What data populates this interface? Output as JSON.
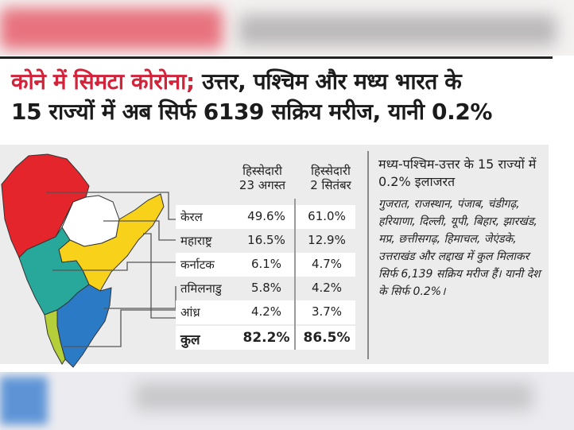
{
  "headline": {
    "part1": "कोने में सिमटा कोरोना;",
    "part2": " उत्तर, पश्चिम और मध्य भारत के",
    "line2": "15 राज्यों में अब सिर्फ 6139 सक्रिय मरीज, यानी 0.2%"
  },
  "table": {
    "col1_line1": "हिस्सेदारी",
    "col1_line2": "23 अगस्त",
    "col2_line1": "हिस्सेदारी",
    "col2_line2": "2 सितंबर",
    "rows": [
      {
        "state": "केरल",
        "aug23": "49.6%",
        "sep2": "61.0%"
      },
      {
        "state": "महाराष्ट्र",
        "aug23": "16.5%",
        "sep2": "12.9%"
      },
      {
        "state": "कर्नाटक",
        "aug23": "6.1%",
        "sep2": "4.7%"
      },
      {
        "state": "तमिलनाडु",
        "aug23": "5.8%",
        "sep2": "4.2%"
      },
      {
        "state": "आंध्र",
        "aug23": "4.2%",
        "sep2": "3.7%"
      }
    ],
    "total": {
      "state": "कुल",
      "aug23": "82.2%",
      "sep2": "86.5%"
    }
  },
  "sidebox": {
    "heading": "मध्य-पश्चिम-उत्तर के 15 राज्यों में 0.2% इलाजरत",
    "body": "गुजरात, राजस्थान, पंजाब, चंडीगढ़, हरियाणा, दिल्ली, यूपी, बिहार, झारखंड, मप्र, छत्तीसगढ़, हिमाचल, जेएंडके, उत्तराखंड और लद्दाख में कुल मिलाकर सिर्फ 6,139 सक्रिय मरीज हैं। यानी देश के सिर्फ 0.2%।"
  },
  "colors": {
    "maharashtra": "#e4252c",
    "telangana": "#ffffff",
    "andhra": "#f8d21a",
    "karnataka": "#27a89a",
    "tamilnadu": "#2b7ac6",
    "kerala": "#b5cf3a",
    "headline_accent": "#d2233a"
  }
}
